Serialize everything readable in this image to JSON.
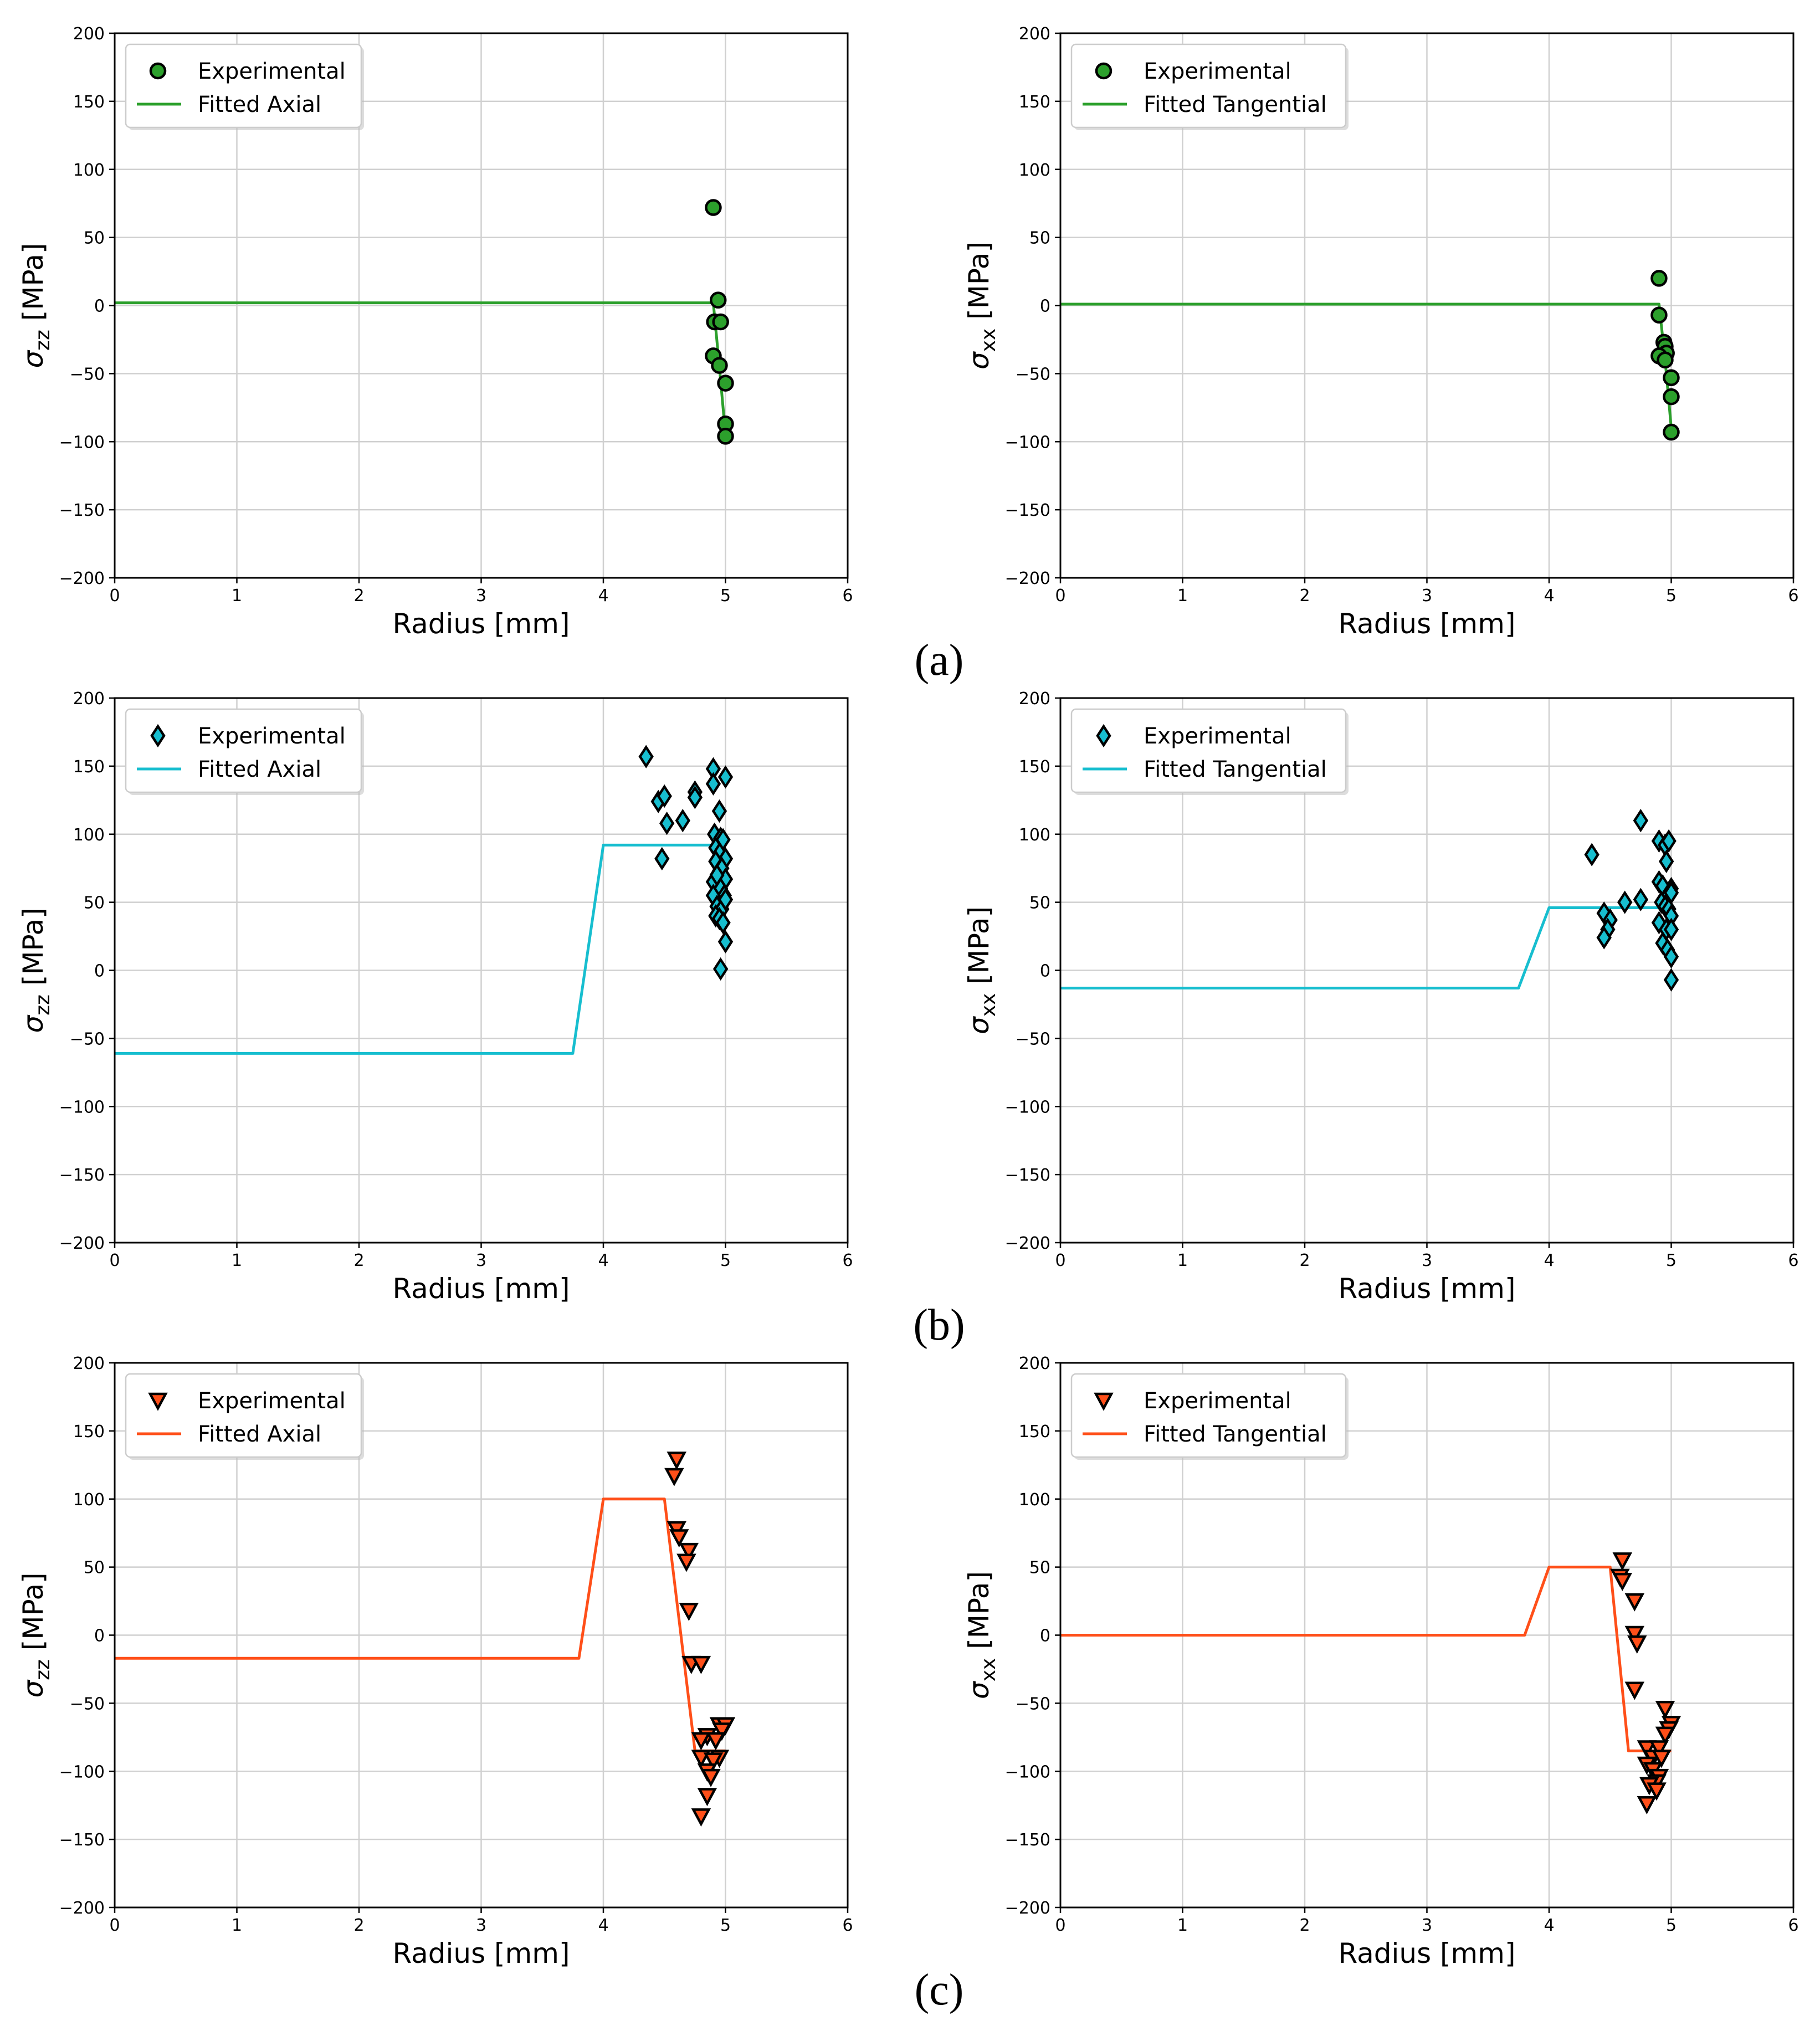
{
  "figure": {
    "panel_labels": [
      "(a)",
      "(b)",
      "(c)"
    ]
  },
  "chart_data": [
    {
      "type": "scatter",
      "panel": "(a)",
      "ylabel_main": "σ",
      "ylabel_sub": "zz",
      "ylabel_unit": " [MPa]",
      "xlabel": "Radius [mm]",
      "xlim": [
        0,
        6
      ],
      "ylim": [
        -200,
        200
      ],
      "xticks": [
        "0",
        "1",
        "2",
        "3",
        "4",
        "5",
        "6"
      ],
      "yticks": [
        "−200",
        "−150",
        "−100",
        "−50",
        "0",
        "50",
        "100",
        "150",
        "200"
      ],
      "grid": true,
      "legend_position": "top-left",
      "marker": "circle",
      "color": "#2ca02c",
      "series": [
        {
          "name": "Experimental",
          "kind": "scatter",
          "x": [
            4.9,
            4.94,
            4.91,
            4.96,
            4.9,
            4.95,
            5.0,
            5.0,
            5.0
          ],
          "y": [
            72,
            4,
            -12,
            -12,
            -37,
            -44,
            -57,
            -87,
            -96
          ]
        },
        {
          "name": "Fitted Axial",
          "kind": "line",
          "x": [
            0,
            4.9,
            4.95,
            5.0
          ],
          "y": [
            2,
            2,
            -45,
            -95
          ]
        }
      ]
    },
    {
      "type": "scatter",
      "panel": "(a)",
      "ylabel_main": "σ",
      "ylabel_sub": "xx",
      "ylabel_unit": " [MPa]",
      "xlabel": "Radius [mm]",
      "xlim": [
        0,
        6
      ],
      "ylim": [
        -200,
        200
      ],
      "xticks": [
        "0",
        "1",
        "2",
        "3",
        "4",
        "5",
        "6"
      ],
      "yticks": [
        "−200",
        "−150",
        "−100",
        "−50",
        "0",
        "50",
        "100",
        "150",
        "200"
      ],
      "grid": true,
      "legend_position": "top-left",
      "marker": "circle",
      "color": "#2ca02c",
      "series": [
        {
          "name": "Experimental",
          "kind": "scatter",
          "x": [
            4.9,
            4.9,
            4.94,
            4.95,
            4.96,
            4.9,
            4.95,
            5.0,
            5.0,
            5.0
          ],
          "y": [
            20,
            -7,
            -27,
            -30,
            -35,
            -37,
            -40,
            -53,
            -67,
            -93
          ]
        },
        {
          "name": "Fitted Tangential",
          "kind": "line",
          "x": [
            0,
            4.9,
            4.95,
            5.0
          ],
          "y": [
            1,
            1,
            -40,
            -90
          ]
        }
      ]
    },
    {
      "type": "scatter",
      "panel": "(b)",
      "ylabel_main": "σ",
      "ylabel_sub": "zz",
      "ylabel_unit": " [MPa]",
      "xlabel": "Radius [mm]",
      "xlim": [
        0,
        6
      ],
      "ylim": [
        -200,
        200
      ],
      "xticks": [
        "0",
        "1",
        "2",
        "3",
        "4",
        "5",
        "6"
      ],
      "yticks": [
        "−200",
        "−150",
        "−100",
        "−50",
        "0",
        "50",
        "100",
        "150",
        "200"
      ],
      "grid": true,
      "legend_position": "top-left",
      "marker": "diamond",
      "color": "#17becf",
      "series": [
        {
          "name": "Experimental",
          "kind": "scatter",
          "x": [
            4.35,
            4.45,
            4.5,
            4.48,
            4.52,
            4.65,
            4.75,
            4.75,
            4.9,
            4.9,
            4.91,
            4.95,
            4.96,
            5.0,
            4.92,
            4.96,
            4.98,
            5.0,
            4.92,
            4.95,
            4.97,
            5.0,
            4.9,
            4.93,
            4.96,
            4.99,
            4.9,
            4.93,
            4.97,
            5.0,
            4.92,
            4.95,
            4.98,
            5.0,
            4.96
          ],
          "y": [
            157,
            124,
            128,
            82,
            108,
            110,
            131,
            127,
            148,
            137,
            100,
            117,
            97,
            142,
            90,
            87,
            96,
            82,
            80,
            73,
            75,
            67,
            65,
            70,
            60,
            55,
            55,
            47,
            45,
            52,
            40,
            38,
            35,
            21,
            1
          ]
        },
        {
          "name": "Fitted Axial",
          "kind": "line",
          "x": [
            0,
            3.75,
            4.0,
            4.95,
            5.0
          ],
          "y": [
            -61,
            -61,
            92,
            92,
            92
          ]
        }
      ]
    },
    {
      "type": "scatter",
      "panel": "(b)",
      "ylabel_main": "σ",
      "ylabel_sub": "xx",
      "ylabel_unit": " [MPa]",
      "xlabel": "Radius [mm]",
      "xlim": [
        0,
        6
      ],
      "ylim": [
        -200,
        200
      ],
      "xticks": [
        "0",
        "1",
        "2",
        "3",
        "4",
        "5",
        "6"
      ],
      "yticks": [
        "−200",
        "−150",
        "−100",
        "−50",
        "0",
        "50",
        "100",
        "150",
        "200"
      ],
      "grid": true,
      "legend_position": "top-left",
      "marker": "diamond",
      "color": "#17becf",
      "series": [
        {
          "name": "Experimental",
          "kind": "scatter",
          "x": [
            4.35,
            4.45,
            4.5,
            4.48,
            4.45,
            4.62,
            4.75,
            4.75,
            4.9,
            4.95,
            4.98,
            4.96,
            5.0,
            4.9,
            4.93,
            4.97,
            5.0,
            4.92,
            4.95,
            4.98,
            5.0,
            4.9,
            4.96,
            5.0,
            4.93,
            4.97,
            5.0,
            5.0
          ],
          "y": [
            85,
            42,
            37,
            30,
            24,
            50,
            110,
            52,
            95,
            92,
            95,
            80,
            60,
            65,
            62,
            55,
            57,
            50,
            47,
            45,
            40,
            35,
            30,
            30,
            20,
            15,
            10,
            -7
          ]
        },
        {
          "name": "Fitted Tangential",
          "kind": "line",
          "x": [
            0,
            3.75,
            4.0,
            4.95,
            5.0
          ],
          "y": [
            -13,
            -13,
            46,
            46,
            46
          ]
        }
      ]
    },
    {
      "type": "scatter",
      "panel": "(c)",
      "ylabel_main": "σ",
      "ylabel_sub": "zz",
      "ylabel_unit": " [MPa]",
      "xlabel": "Radius [mm]",
      "xlim": [
        0,
        6
      ],
      "ylim": [
        -200,
        200
      ],
      "xticks": [
        "0",
        "1",
        "2",
        "3",
        "4",
        "5",
        "6"
      ],
      "yticks": [
        "−200",
        "−150",
        "−100",
        "−50",
        "0",
        "50",
        "100",
        "150",
        "200"
      ],
      "grid": true,
      "legend_position": "top-left",
      "marker": "triangle-down",
      "color": "#ff4f19",
      "series": [
        {
          "name": "Experimental",
          "kind": "scatter",
          "x": [
            4.6,
            4.58,
            4.6,
            4.62,
            4.7,
            4.68,
            4.7,
            4.72,
            4.8,
            4.95,
            5.0,
            4.97,
            4.85,
            4.8,
            4.92,
            4.95,
            4.8,
            4.9,
            4.85,
            4.88,
            4.85,
            4.8
          ],
          "y": [
            129,
            117,
            78,
            72,
            62,
            54,
            18,
            -21,
            -21,
            -66,
            -66,
            -70,
            -74,
            -77,
            -77,
            -90,
            -90,
            -92,
            -100,
            -104,
            -118,
            -133
          ]
        },
        {
          "name": "Fitted Axial",
          "kind": "line",
          "x": [
            0,
            3.8,
            4.0,
            4.5,
            4.75,
            5.0
          ],
          "y": [
            -17,
            -17,
            100,
            100,
            -85,
            -85
          ]
        }
      ]
    },
    {
      "type": "scatter",
      "panel": "(c)",
      "ylabel_main": "σ",
      "ylabel_sub": "xx",
      "ylabel_unit": " [MPa]",
      "xlabel": "Radius [mm]",
      "xlim": [
        0,
        6
      ],
      "ylim": [
        -200,
        200
      ],
      "xticks": [
        "0",
        "1",
        "2",
        "3",
        "4",
        "5",
        "6"
      ],
      "yticks": [
        "−200",
        "−150",
        "−100",
        "−50",
        "0",
        "50",
        "100",
        "150",
        "200"
      ],
      "grid": true,
      "legend_position": "top-left",
      "marker": "triangle-down",
      "color": "#ff4f19",
      "series": [
        {
          "name": "Experimental",
          "kind": "scatter",
          "x": [
            4.6,
            4.58,
            4.6,
            4.7,
            4.7,
            4.72,
            4.7,
            4.95,
            5.0,
            4.98,
            4.95,
            4.8,
            4.9,
            4.85,
            4.92,
            4.8,
            4.85,
            4.9,
            4.88,
            4.82,
            4.88,
            4.8
          ],
          "y": [
            55,
            43,
            40,
            25,
            1,
            -6,
            -40,
            -54,
            -65,
            -69,
            -73,
            -83,
            -83,
            -90,
            -90,
            -95,
            -99,
            -104,
            -108,
            -110,
            -114,
            -124
          ]
        },
        {
          "name": "Fitted Tangential",
          "kind": "line",
          "x": [
            0,
            3.8,
            4.0,
            4.5,
            4.65,
            5.0
          ],
          "y": [
            0,
            0,
            50,
            50,
            -85,
            -85
          ]
        }
      ]
    }
  ]
}
